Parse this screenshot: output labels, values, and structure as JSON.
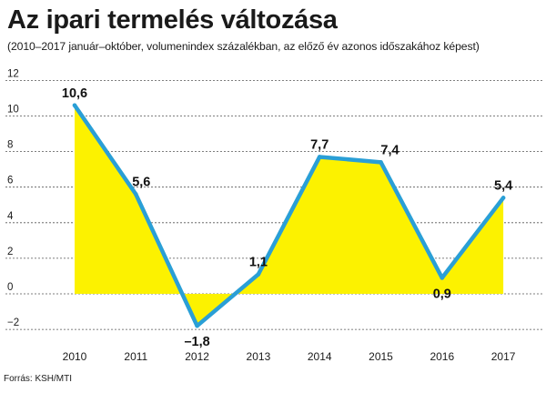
{
  "chart_data": {
    "type": "area",
    "title": "Az ipari termelés változása",
    "subtitle": "(2010–2017 január–október, volumenindex százalékban, az előző év azonos időszakához képest)",
    "source": "Forrás: KSH/MTI",
    "categories": [
      "2010",
      "2011",
      "2012",
      "2013",
      "2014",
      "2015",
      "2016",
      "2017"
    ],
    "values": [
      10.6,
      5.6,
      -1.8,
      1.1,
      7.7,
      7.4,
      0.9,
      5.4
    ],
    "data_labels": [
      "10,6",
      "5,6",
      "–1,8",
      "1,1",
      "7,7",
      "7,4",
      "0,9",
      "5,4"
    ],
    "y_ticks": [
      12,
      10,
      8,
      6,
      4,
      2,
      0,
      -2
    ],
    "y_tick_labels": [
      "12",
      "10",
      "8",
      "6",
      "4",
      "2",
      "0",
      "−2"
    ],
    "ylim": [
      -2.5,
      12
    ],
    "grid": "dashed horizontal",
    "line_color": "#2a9fd6",
    "fill_color": "#fcf200",
    "grid_color": "#555555"
  }
}
